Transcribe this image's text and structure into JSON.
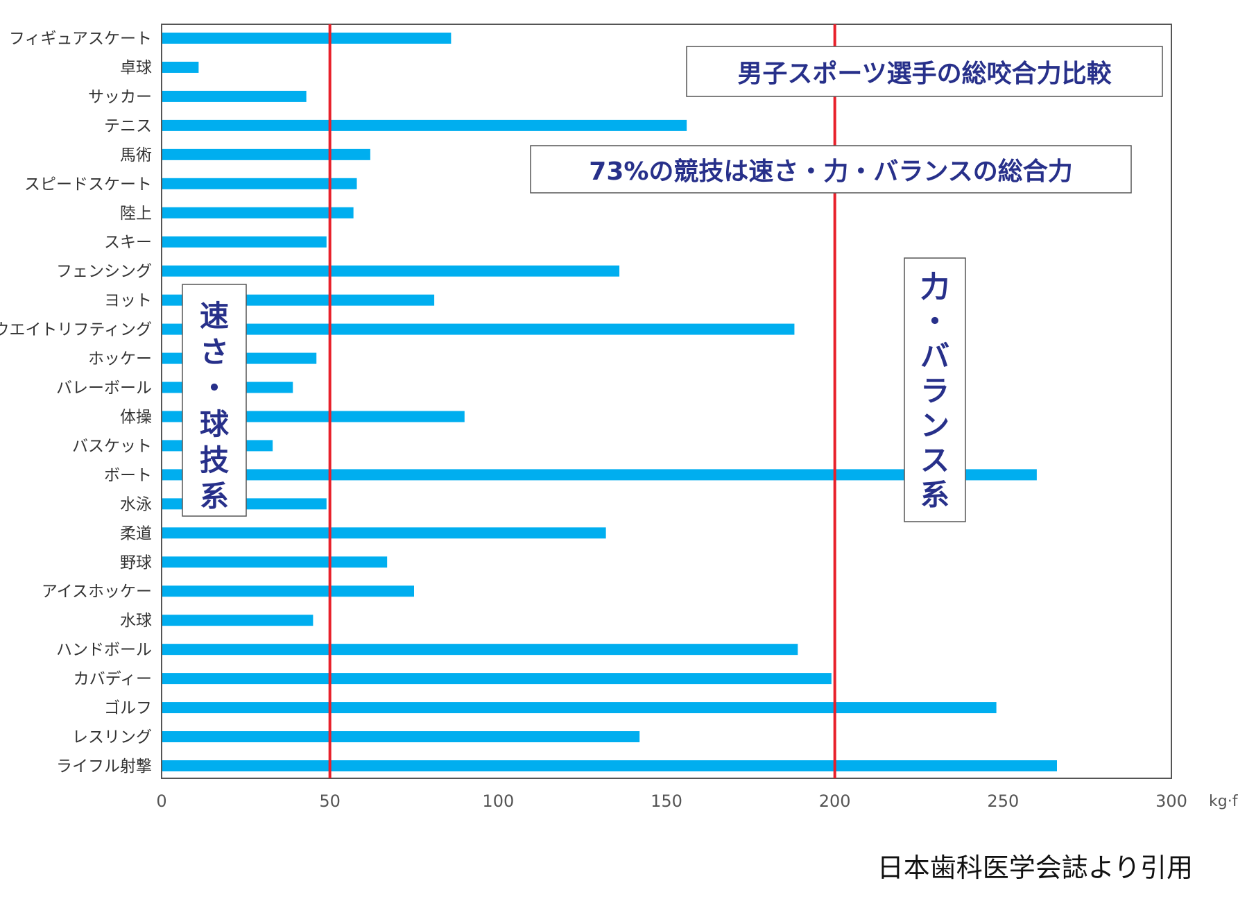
{
  "chart_data": {
    "type": "bar",
    "orientation": "horizontal",
    "title": "男子スポーツ選手の総咬合力比較",
    "categories": [
      "フィギュアスケート",
      "卓球",
      "サッカー",
      "テニス",
      "馬術",
      "スピードスケート",
      "陸上",
      "スキー",
      "フェンシング",
      "ヨット",
      "ウエイトリフティング",
      "ホッケー",
      "バレーボール",
      "体操",
      "バスケット",
      "ボート",
      "水泳",
      "柔道",
      "野球",
      "アイスホッケー",
      "水球",
      "ハンドボール",
      "カバディー",
      "ゴルフ",
      "レスリング",
      "ライフル射撃"
    ],
    "values": [
      86,
      11,
      43,
      156,
      62,
      58,
      57,
      49,
      136,
      81,
      188,
      46,
      39,
      90,
      33,
      260,
      49,
      132,
      67,
      75,
      45,
      189,
      199,
      248,
      142,
      266
    ],
    "xlim": [
      0,
      300
    ],
    "xticks": [
      "0",
      "50",
      "100",
      "150",
      "200",
      "250",
      "300"
    ],
    "xunit": "kg·f",
    "bar_color": "#00aeef",
    "reference_lines": [
      {
        "value": 50,
        "color": "#e8202a"
      },
      {
        "value": 200,
        "color": "#e8202a"
      }
    ],
    "annotations": {
      "subtitle": "73%の競技は速さ・力・バランスの総合力",
      "left_group": "速さ・球技系",
      "right_group": "力・バランス系"
    },
    "text_color": "#27308a"
  },
  "source": "日本歯科医学会誌より引用"
}
